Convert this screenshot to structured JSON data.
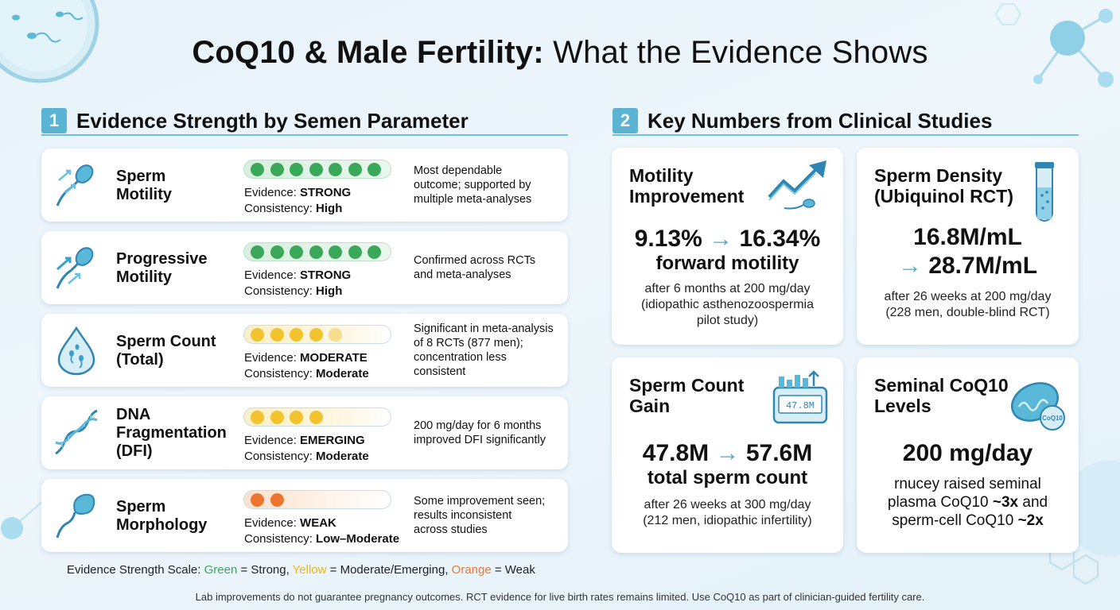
{
  "title": {
    "bold": "CoQ10 & Male Fertility:",
    "rest": "What the Evidence Shows"
  },
  "section1": {
    "number": "1",
    "title": "Evidence Strength by Semen Parameter"
  },
  "section2": {
    "number": "2",
    "title": "Key Numbers from Clinical Studies"
  },
  "evidence_label": "Evidence:",
  "consistency_label": "Consistency:",
  "colors": {
    "green": "#3aa859",
    "yellow": "#f2c32c",
    "orange": "#ee7530",
    "accent": "#5bb4d3"
  },
  "parameters": [
    {
      "name_line1": "Sperm",
      "name_line2": "Motility",
      "name_line3": "",
      "icon": "sperm-motility-icon",
      "evidence": "STRONG",
      "consistency": "High",
      "level": "green",
      "filled_dots": 7,
      "desc": [
        "Most dependable",
        "outcome; supported by",
        "multiple meta-analyses"
      ]
    },
    {
      "name_line1": "Progressive",
      "name_line2": "Motility",
      "name_line3": "",
      "icon": "progressive-motility-icon",
      "evidence": "STRONG",
      "consistency": "High",
      "level": "green",
      "filled_dots": 7,
      "desc": [
        "Confirmed across RCTs",
        "and meta-analyses"
      ]
    },
    {
      "name_line1": "Sperm Count",
      "name_line2": "(Total)",
      "name_line3": "",
      "icon": "drop-icon",
      "evidence": "MODERATE",
      "consistency": "Moderate",
      "level": "yellow",
      "filled_dots": 5,
      "desc": [
        "Significant in meta-analysis",
        "of 8 RCTs (877 men);",
        "concentration less",
        "consistent"
      ]
    },
    {
      "name_line1": "DNA",
      "name_line2": "Fragmentation",
      "name_line3": "(DFI)",
      "icon": "dna-icon",
      "evidence": "EMERGING",
      "consistency": "Moderate",
      "level": "yellow",
      "filled_dots": 4,
      "desc": [
        "200 mg/day for 6 months",
        "improved DFI significantly"
      ]
    },
    {
      "name_line1": "Sperm",
      "name_line2": "Morphology",
      "name_line3": "",
      "icon": "sperm-morphology-icon",
      "evidence": "WEAK",
      "consistency": "Low–Moderate",
      "level": "orange",
      "filled_dots": 2,
      "desc": [
        "Some improvement seen;",
        "results inconsistent",
        "across studies"
      ]
    }
  ],
  "scale": {
    "prefix": "Evidence Strength Scale:",
    "green": "Green",
    "green_text": " = Strong, ",
    "yellow": "Yellow",
    "yellow_text": " = Moderate/Emerging, ",
    "orange": "Orange",
    "orange_text": " = Weak"
  },
  "cards": {
    "motility": {
      "title1": "Motility",
      "title2": "Improvement",
      "icon": "trend-up-icon",
      "from": "9.13%",
      "to": "16.34%",
      "arrow": "→",
      "sub": "forward motility",
      "note": [
        "after 6 months at 200 mg/day",
        "(idiopathic asthenozoospermia",
        "pilot study)"
      ]
    },
    "density": {
      "title1": "Sperm Density",
      "title2": "(Ubiquinol RCT)",
      "icon": "test-tube-icon",
      "from": "16.8M/mL",
      "to": "28.7M/mL",
      "arrow": "→",
      "note": [
        "after 26 weeks at 200 mg/day",
        "(228 men, double-blind RCT)"
      ]
    },
    "count": {
      "title1": "Sperm Count",
      "title2": "Gain",
      "icon": "counter-icon",
      "counter_digits": "47.8M",
      "from": "47.8M",
      "to": "57.6M",
      "arrow": "→",
      "sub": "total sperm count",
      "note": [
        "after 26 weeks at 300 mg/day",
        "(212 men, idiopathic infertility)"
      ]
    },
    "seminal": {
      "title1": "Seminal CoQ10",
      "title2": "Levels",
      "icon": "mitochondria-icon",
      "icon_label": "CoQ10",
      "big": "200 mg/day",
      "line1": "rnucey raised seminal",
      "line2a": "plasma CoQ10 ",
      "line2b": "~3x",
      "line2c": " and",
      "line3a": "sperm-cell CoQ10 ",
      "line3b": "~2x"
    }
  },
  "footer": "Lab improvements do not guarantee pregnancy outcomes. RCT evidence for live birth rates remains limited. Use CoQ10 as part of clinician-guided fertility care."
}
